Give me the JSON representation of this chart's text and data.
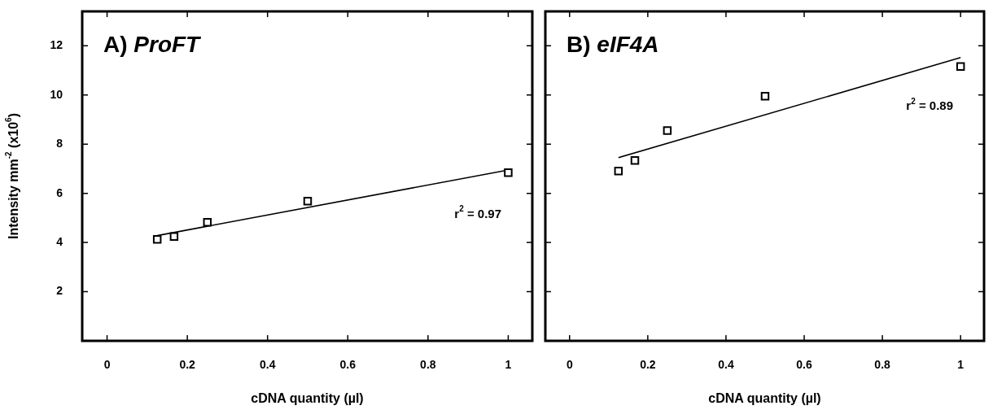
{
  "chart_data": [
    {
      "type": "scatter",
      "title": "A) ProFT",
      "xlabel": "cDNA quantity (µl)",
      "ylabel": "Intensity mm$^{-2}$ (x10$^{6}$)",
      "xlim": [
        -0.062,
        1.06
      ],
      "ylim": [
        0,
        13.4
      ],
      "xticks": [
        0,
        0.2,
        0.4,
        0.6,
        0.8,
        1
      ],
      "yticks": [
        2,
        4,
        6,
        8,
        10,
        12
      ],
      "grid": false,
      "legend": false,
      "annotations": [
        "r$^{2}$ = 0.97"
      ],
      "series": [
        {
          "type": "scatter",
          "color": "#000000",
          "marker": "square",
          "x": [
            0.125,
            0.167,
            0.25,
            0.5,
            1
          ],
          "values": [
            4.13,
            4.24,
            4.82,
            5.68,
            6.84
          ]
        },
        {
          "type": "line",
          "color": "#000000",
          "marker": "none",
          "x": [
            0.125,
            1
          ],
          "values": [
            4.28,
            6.95
          ]
        }
      ]
    },
    {
      "type": "scatter",
      "title": "B) eIF4A",
      "xlabel": "cDNA quantity (µl)",
      "xlim": [
        -0.062,
        1.06
      ],
      "ylim": [
        0,
        13.4
      ],
      "xticks": [
        0,
        0.2,
        0.4,
        0.6,
        0.8,
        1
      ],
      "yticks": [
        2,
        4,
        6,
        8,
        10,
        12
      ],
      "tick_labels": "x",
      "grid": false,
      "legend": false,
      "annotations": [
        "r$^{2}$ = 0.89"
      ],
      "series": [
        {
          "type": "scatter",
          "color": "#000000",
          "marker": "square",
          "x": [
            0.125,
            0.167,
            0.25,
            0.5,
            1
          ],
          "values": [
            6.91,
            7.34,
            8.55,
            9.95,
            11.16
          ]
        },
        {
          "type": "line",
          "color": "#000000",
          "marker": "none",
          "x": [
            0.125,
            1
          ],
          "values": [
            7.45,
            11.52
          ]
        }
      ]
    }
  ]
}
